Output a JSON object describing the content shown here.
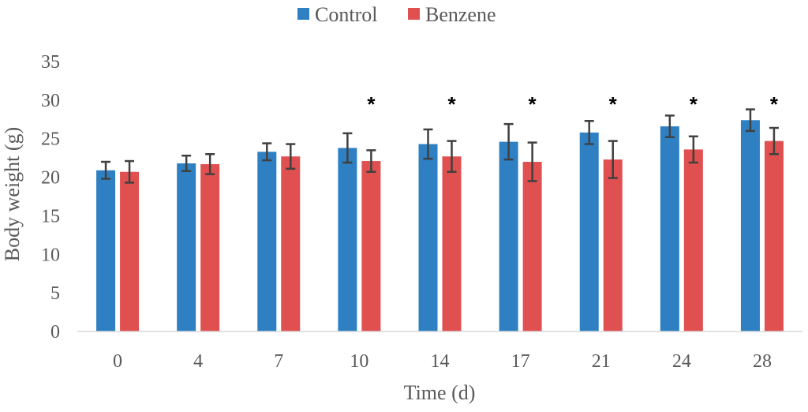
{
  "chart_data": {
    "type": "bar",
    "title": "",
    "xlabel": "Time (d)",
    "ylabel": "Body weight (g)",
    "ylim": [
      0,
      35
    ],
    "yticks": [
      0,
      5,
      10,
      15,
      20,
      25,
      30,
      35
    ],
    "grid": false,
    "legend_position": "top-center",
    "categories": [
      "0",
      "4",
      "7",
      "10",
      "14",
      "17",
      "21",
      "24",
      "28"
    ],
    "series": [
      {
        "name": "Control",
        "color": "#2e80c2",
        "values": [
          20.9,
          21.8,
          23.3,
          23.8,
          24.3,
          24.6,
          25.8,
          26.6,
          27.4
        ],
        "errors": [
          1.1,
          1.0,
          1.1,
          1.9,
          1.9,
          2.3,
          1.5,
          1.4,
          1.4
        ]
      },
      {
        "name": "Benzene",
        "color": "#e05050",
        "values": [
          20.7,
          21.7,
          22.7,
          22.1,
          22.7,
          22.0,
          22.3,
          23.6,
          24.7
        ],
        "errors": [
          1.4,
          1.3,
          1.6,
          1.4,
          2.0,
          2.5,
          2.4,
          1.7,
          1.7
        ]
      }
    ],
    "significance": [
      "",
      "",
      "",
      "*",
      "*",
      "*",
      "*",
      "*",
      "*"
    ]
  }
}
